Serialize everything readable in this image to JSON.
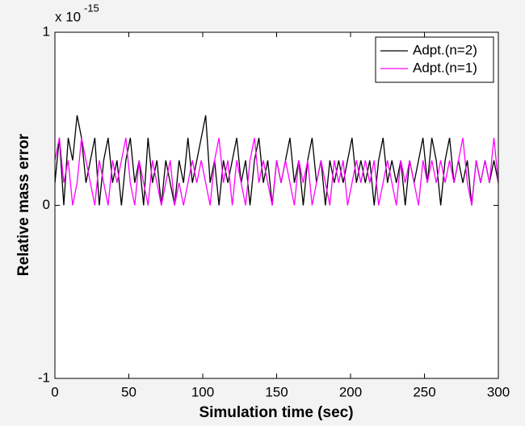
{
  "chart_data": {
    "type": "line",
    "x_label": "Simulation time (sec)",
    "y_label": "Relative mass error",
    "y_exponent": {
      "base": "x 10",
      "power": "-15"
    },
    "x": [
      0,
      3,
      6,
      9,
      12,
      15,
      18,
      21,
      24,
      27,
      30,
      33,
      36,
      39,
      42,
      45,
      48,
      51,
      54,
      57,
      60,
      63,
      66,
      69,
      72,
      75,
      78,
      81,
      84,
      87,
      90,
      93,
      96,
      99,
      102,
      105,
      108,
      111,
      114,
      117,
      120,
      123,
      126,
      129,
      132,
      135,
      138,
      141,
      144,
      147,
      150,
      153,
      156,
      159,
      162,
      165,
      168,
      171,
      174,
      177,
      180,
      183,
      186,
      189,
      192,
      195,
      198,
      201,
      204,
      207,
      210,
      213,
      216,
      219,
      222,
      225,
      228,
      231,
      234,
      237,
      240,
      243,
      246,
      249,
      252,
      255,
      258,
      261,
      264,
      267,
      270,
      273,
      276,
      279,
      282,
      285,
      288,
      291,
      294,
      297,
      300
    ],
    "series": [
      {
        "name": "Adpt.(n=2)",
        "color": "#000000",
        "values": [
          0.13,
          0.39,
          0,
          0.39,
          0.26,
          0.52,
          0.39,
          0.13,
          0.26,
          0.39,
          0,
          0.26,
          0.39,
          0.13,
          0.26,
          0,
          0.26,
          0.39,
          0.13,
          0.26,
          0,
          0.39,
          0.13,
          0.26,
          0,
          0.26,
          0.13,
          0,
          0.26,
          0.13,
          0.39,
          0.13,
          0.26,
          0.39,
          0.52,
          0.13,
          0.26,
          0,
          0.26,
          0.13,
          0.26,
          0.39,
          0.13,
          0.26,
          0,
          0.26,
          0.39,
          0.13,
          0.26,
          0,
          0.26,
          0.13,
          0.26,
          0.39,
          0.13,
          0.26,
          0,
          0.26,
          0.39,
          0.13,
          0.26,
          0,
          0.26,
          0.13,
          0.26,
          0.13,
          0.26,
          0.39,
          0.13,
          0.26,
          0.13,
          0.26,
          0,
          0.26,
          0.39,
          0.13,
          0.26,
          0.13,
          0.26,
          0,
          0.26,
          0.13,
          0.26,
          0.39,
          0.13,
          0.39,
          0.26,
          0,
          0.26,
          0.39,
          0.13,
          0.26,
          0.13,
          0.26,
          0,
          0.26,
          0.13,
          0.26,
          0.13,
          0.26,
          0.13
        ]
      },
      {
        "name": "Adpt.(n=1)",
        "color": "#ff00ff",
        "values": [
          0.26,
          0.39,
          0.13,
          0.26,
          0,
          0.13,
          0.39,
          0.26,
          0.13,
          0,
          0.26,
          0.13,
          0,
          0.26,
          0.13,
          0.26,
          0.39,
          0.13,
          0,
          0.26,
          0.13,
          0,
          0.26,
          0.13,
          0,
          0.13,
          0.26,
          0,
          0.13,
          0,
          0.13,
          0.26,
          0.13,
          0.26,
          0.13,
          0,
          0.26,
          0.39,
          0.13,
          0.26,
          0,
          0.26,
          0.13,
          0,
          0.26,
          0.39,
          0.13,
          0.26,
          0.13,
          0,
          0.26,
          0.13,
          0.26,
          0.13,
          0,
          0.26,
          0.13,
          0.26,
          0,
          0.13,
          0.26,
          0.13,
          0,
          0.26,
          0.13,
          0.26,
          0,
          0.13,
          0.26,
          0.13,
          0.26,
          0.13,
          0.26,
          0,
          0.13,
          0.26,
          0.13,
          0,
          0.26,
          0.13,
          0.26,
          0.13,
          0,
          0.26,
          0.13,
          0.26,
          0.13,
          0.26,
          0.13,
          0.26,
          0.13,
          0.26,
          0.39,
          0.13,
          0,
          0.26,
          0.13,
          0.26,
          0.13,
          0.39,
          0.13
        ]
      }
    ],
    "xlim": [
      0,
      300
    ],
    "xticks": [
      0,
      50,
      100,
      150,
      200,
      250,
      300
    ],
    "ylim": [
      -1,
      1
    ],
    "yticks": [
      -1,
      0,
      1
    ],
    "legend": "northeast"
  }
}
